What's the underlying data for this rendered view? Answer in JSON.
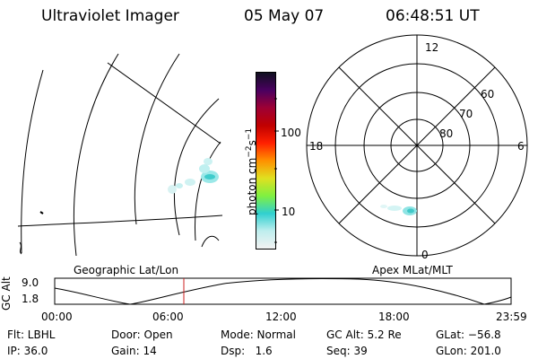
{
  "header": {
    "instrument": "Ultraviolet Imager",
    "date": "05 May 07",
    "time": "06:48:51 UT"
  },
  "left_map": {
    "label": "Geographic Lat/Lon"
  },
  "right_map": {
    "label": "Apex MLat/MLT",
    "mlt_labels": {
      "top": "12",
      "left": "18",
      "right": "6",
      "bottom": "0"
    },
    "lat_labels": [
      "60",
      "70",
      "80"
    ]
  },
  "colorbar": {
    "unit_base": "photon cm",
    "unit_exp1": "−2",
    "unit_mid": "s",
    "unit_exp2": "−1",
    "ticks": [
      {
        "label": "100",
        "value": 100
      },
      {
        "label": "10",
        "value": 10
      }
    ],
    "colors": [
      "#f2f2f2",
      "#bfeeee",
      "#30d0d0",
      "#80f040",
      "#e0e020",
      "#ff9000",
      "#ff2000",
      "#c00000",
      "#9e0034",
      "#4a0060",
      "#101020"
    ]
  },
  "altitude_plot": {
    "ylabel": "GC Alt",
    "yticks": [
      "9.0",
      "1.8"
    ],
    "xticks": [
      "00:00",
      "06:00",
      "12:00",
      "18:00",
      "23:59"
    ],
    "marker_time": "06:48"
  },
  "info": {
    "flt": "Flt: LBHL",
    "ip": "IP: 36.0",
    "door": "Door: Open",
    "gain": "Gain: 14",
    "mode": "Mode: Normal",
    "dsp": "Dsp:   1.6",
    "gcalt": "GC Alt: 5.2 Re",
    "seq": "Seq: 39",
    "glat": "GLat: −56.8",
    "glon": "GLon: 201.0"
  }
}
